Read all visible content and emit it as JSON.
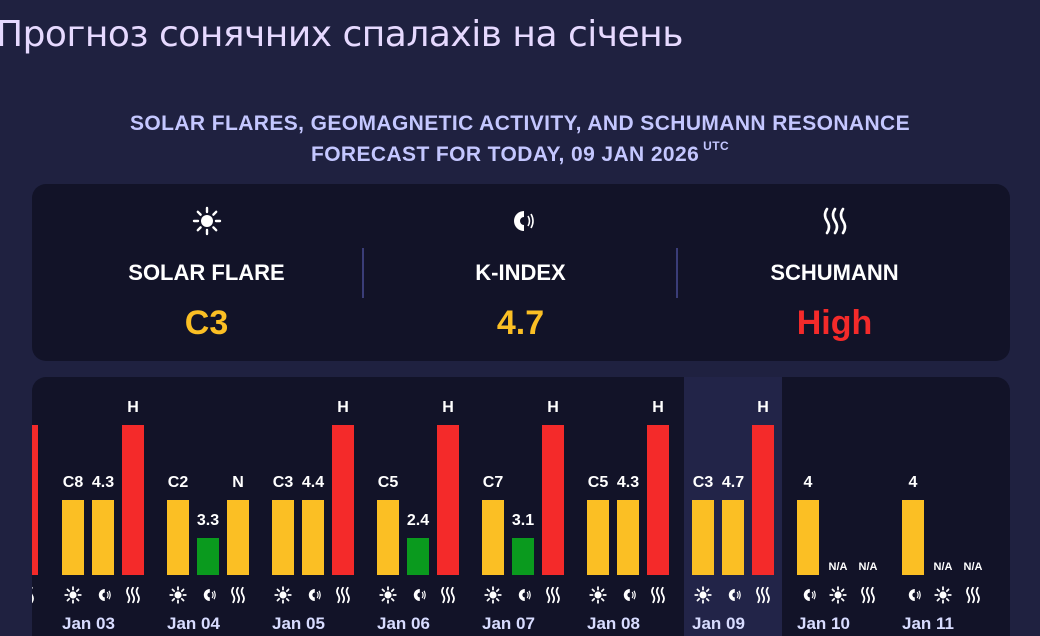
{
  "header": {
    "title": "Прогноз сонячних спалахів на січень",
    "subtitle_line1": "SOLAR FLARES, GEOMAGNETIC ACTIVITY, AND SCHUMANN RESONANCE",
    "subtitle_line2": "FORECAST FOR TODAY, 09 JAN 2026",
    "subtitle_sup": "UTC"
  },
  "summary": [
    {
      "id": "solar-flare",
      "icon": "sun-icon",
      "label": "SOLAR FLARE",
      "value": "C3",
      "color": "#fbbf24"
    },
    {
      "id": "k-index",
      "icon": "magnet-icon",
      "label": "K-INDEX",
      "value": "4.7",
      "color": "#fbbf24"
    },
    {
      "id": "schumann",
      "icon": "waves-icon",
      "label": "SCHUMANN",
      "value": "High",
      "color": "#f42a2a"
    }
  ],
  "colors": {
    "yellow": "#fbbf24",
    "green": "#0a9a1e",
    "red": "#f42a2a",
    "today_bg": "#222448"
  },
  "timeline": {
    "today": "Jan 09",
    "days": [
      {
        "date": "Jan 03",
        "items": [
          {
            "type": "flare",
            "label": "C8",
            "level": "mid"
          },
          {
            "type": "kindex",
            "label": "4.3",
            "level": "mid"
          },
          {
            "type": "schumann",
            "label": "H",
            "level": "high"
          }
        ]
      },
      {
        "date": "Jan 04",
        "items": [
          {
            "type": "flare",
            "label": "C2",
            "level": "mid"
          },
          {
            "type": "kindex",
            "label": "3.3",
            "level": "low"
          },
          {
            "type": "schumann",
            "label": "N",
            "level": "mid"
          }
        ]
      },
      {
        "date": "Jan 05",
        "items": [
          {
            "type": "flare",
            "label": "C3",
            "level": "mid"
          },
          {
            "type": "kindex",
            "label": "4.4",
            "level": "mid"
          },
          {
            "type": "schumann",
            "label": "H",
            "level": "high"
          }
        ]
      },
      {
        "date": "Jan 06",
        "items": [
          {
            "type": "flare",
            "label": "C5",
            "level": "mid"
          },
          {
            "type": "kindex",
            "label": "2.4",
            "level": "low"
          },
          {
            "type": "schumann",
            "label": "H",
            "level": "high"
          }
        ]
      },
      {
        "date": "Jan 07",
        "items": [
          {
            "type": "flare",
            "label": "C7",
            "level": "mid"
          },
          {
            "type": "kindex",
            "label": "3.1",
            "level": "low"
          },
          {
            "type": "schumann",
            "label": "H",
            "level": "high"
          }
        ]
      },
      {
        "date": "Jan 08",
        "items": [
          {
            "type": "flare",
            "label": "C5",
            "level": "mid"
          },
          {
            "type": "kindex",
            "label": "4.3",
            "level": "mid"
          },
          {
            "type": "schumann",
            "label": "H",
            "level": "high"
          }
        ]
      },
      {
        "date": "Jan 09",
        "items": [
          {
            "type": "flare",
            "label": "C3",
            "level": "mid"
          },
          {
            "type": "kindex",
            "label": "4.7",
            "level": "mid"
          },
          {
            "type": "schumann",
            "label": "H",
            "level": "high"
          }
        ]
      },
      {
        "date": "Jan 10",
        "items": [
          {
            "type": "kindex",
            "label": "4",
            "level": "mid"
          },
          {
            "type": "flare",
            "label": "N/A",
            "level": "none"
          },
          {
            "type": "schumann",
            "label": "N/A",
            "level": "none"
          }
        ]
      },
      {
        "date": "Jan 11",
        "items": [
          {
            "type": "kindex",
            "label": "4",
            "level": "mid"
          },
          {
            "type": "flare",
            "label": "N/A",
            "level": "none"
          },
          {
            "type": "schumann",
            "label": "N/A",
            "level": "none"
          }
        ]
      }
    ]
  }
}
